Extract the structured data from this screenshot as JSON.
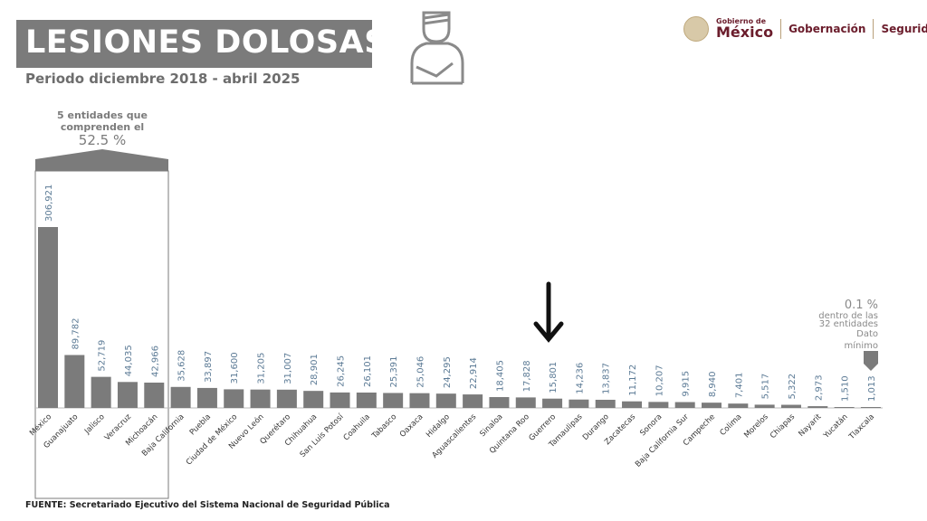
{
  "header": {
    "title": "LESIONES DOLOSAS",
    "subtitle": "Periodo diciembre 2018 - abril 2025",
    "icon": "injured-person-arm-sling-icon",
    "logos": {
      "gob_small": "Gobierno de",
      "gob_big": "México",
      "gobernacion": "Gobernación",
      "seguridad": "Seguridad"
    }
  },
  "footer": {
    "source": "FUENTE: Secretariado Ejecutivo del Sistema Nacional de Seguridad Pública"
  },
  "colors": {
    "bar": "#7b7b7b",
    "value_label": "#5b7a95",
    "title_bg": "#7b7b7b",
    "brand": "#6b1d2c"
  },
  "chart_data": {
    "type": "bar",
    "title": "",
    "xlabel": "",
    "ylabel": "",
    "ylim": [
      0,
      306921
    ],
    "grid": false,
    "categories": [
      "México",
      "Guanajuato",
      "Jalisco",
      "Veracruz",
      "Michoacán",
      "Baja California",
      "Puebla",
      "Ciudad de México",
      "Nuevo León",
      "Querétaro",
      "Chihuahua",
      "San Luis Potosí",
      "Coahuila",
      "Tabasco",
      "Oaxaca",
      "Hidalgo",
      "Aguascalientes",
      "Sinaloa",
      "Quintana Roo",
      "Guerrero",
      "Tamaulipas",
      "Durango",
      "Zacatecas",
      "Sonora",
      "Baja California Sur",
      "Campeche",
      "Colima",
      "Morelos",
      "Chiapas",
      "Nayarit",
      "Yucatán",
      "Tlaxcala"
    ],
    "values": [
      306921,
      89782,
      52719,
      44035,
      42966,
      35628,
      33897,
      31600,
      31205,
      31007,
      28901,
      26245,
      26101,
      25391,
      25046,
      24295,
      22914,
      18405,
      17828,
      15801,
      14236,
      13837,
      11172,
      10207,
      9915,
      8940,
      7401,
      5517,
      5322,
      2973,
      1510,
      1013
    ],
    "value_labels": [
      "306,921",
      "89,782",
      "52,719",
      "44,035",
      "42,966",
      "35,628",
      "33,897",
      "31,600",
      "31,205",
      "31,007",
      "28,901",
      "26,245",
      "26,101",
      "25,391",
      "25,046",
      "24,295",
      "22,914",
      "18,405",
      "17,828",
      "15,801",
      "14,236",
      "13,837",
      "11,172",
      "10,207",
      "9,915",
      "8,940",
      "7,401",
      "5,517",
      "5,322",
      "2,973",
      "1,510",
      "1,013"
    ],
    "annotations": {
      "top5": {
        "line1": "5 entidades que",
        "line2": "comprenden el",
        "pct": "52.5 %"
      },
      "min": {
        "pct": "0.1 %",
        "line1": "dentro de las",
        "line2": "32 entidades",
        "line3": "Dato",
        "line4": "mínimo"
      },
      "arrow_target": "Guerrero"
    }
  }
}
